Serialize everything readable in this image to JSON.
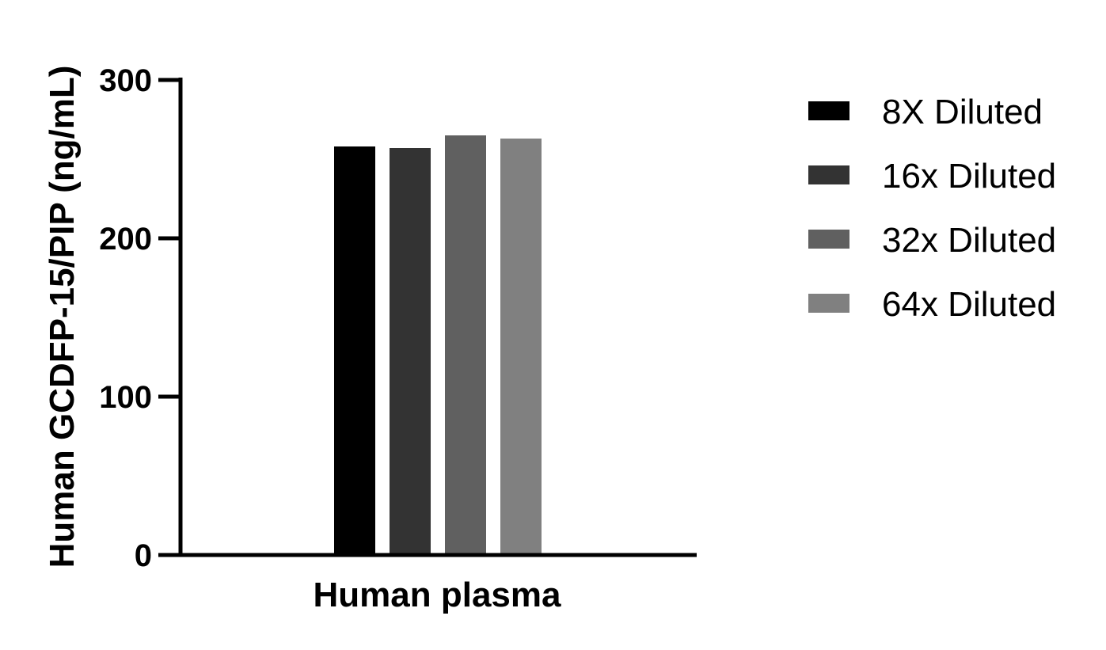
{
  "chart_data": {
    "type": "bar",
    "categories": [
      "Human plasma"
    ],
    "series": [
      {
        "name": "8X Diluted",
        "values": [
          258
        ],
        "color": "#000000"
      },
      {
        "name": "16x Diluted",
        "values": [
          257
        ],
        "color": "#333333"
      },
      {
        "name": "32x Diluted",
        "values": [
          265
        ],
        "color": "#606060"
      },
      {
        "name": "64x Diluted",
        "values": [
          263
        ],
        "color": "#808080"
      }
    ],
    "title": "",
    "xlabel": "Human plasma",
    "ylabel": "Human GCDFP-15/PIP (ng/mL)",
    "ylim": [
      0,
      300
    ],
    "yticks": [
      "0",
      "100",
      "200",
      "300"
    ],
    "grid": false,
    "legend_position": "right"
  }
}
